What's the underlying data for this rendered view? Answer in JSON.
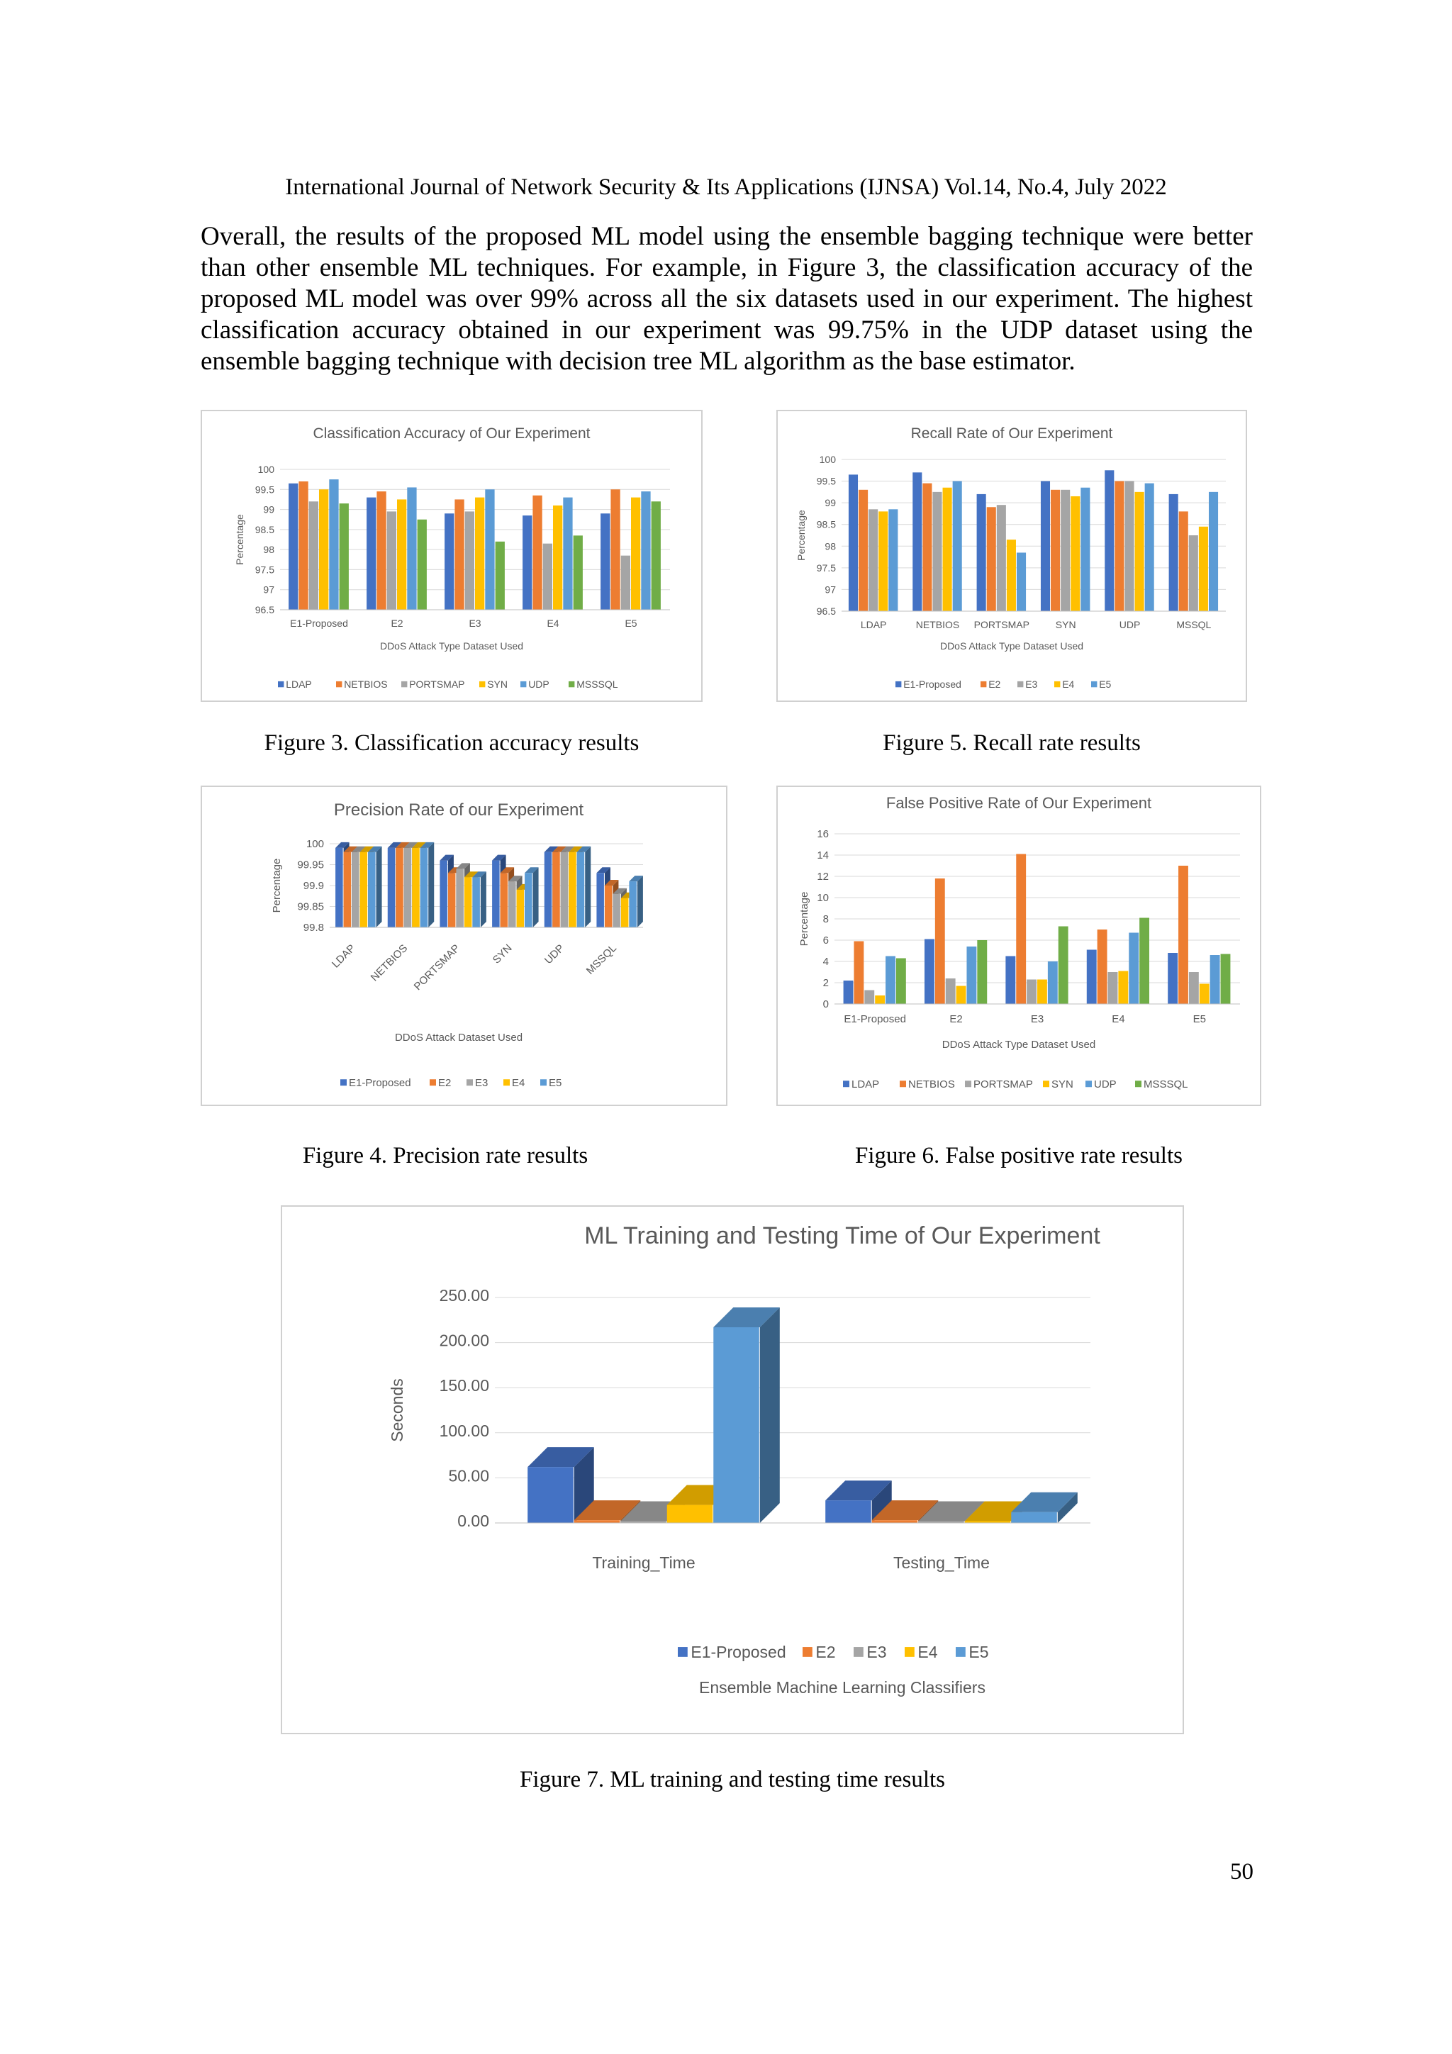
{
  "header": "International Journal of Network Security & Its Applications (IJNSA) Vol.14, No.4, July 2022",
  "paragraph": "Overall, the results of the proposed ML model using the ensemble bagging technique were better than other ensemble ML techniques. For example, in Figure 3, the classification accuracy of the proposed ML model was over 99% across all the six datasets used in our experiment. The highest classification accuracy obtained in our experiment was 99.75% in the UDP dataset using the ensemble bagging technique with decision tree ML algorithm as the base estimator.",
  "captions": {
    "fig3": "Figure 3. Classification accuracy results",
    "fig5": "Figure 5. Recall rate results",
    "fig4": "Figure 4. Precision rate results",
    "fig6": "Figure 6. False positive rate results",
    "fig7": "Figure 7. ML training and testing time results"
  },
  "page_number": "50",
  "colors": {
    "blue": "#4472c4",
    "orange": "#ed7d31",
    "gray": "#a5a5a5",
    "yellow": "#ffc000",
    "lightblue": "#5b9bd5",
    "green": "#70ad47"
  },
  "chart_data": [
    {
      "id": "fig3",
      "type": "bar",
      "title": "Classification Accuracy of Our Experiment",
      "xlabel": "DDoS Attack Type Dataset Used",
      "ylabel": "Percentage",
      "ylim": [
        96.5,
        100
      ],
      "yticks": [
        "100",
        "99.5",
        "99",
        "98.5",
        "98",
        "97.5",
        "97",
        "96.5"
      ],
      "categories": [
        "E1-Proposed",
        "E2",
        "E3",
        "E4",
        "E5"
      ],
      "legend_position": "bottom",
      "series": [
        {
          "name": "LDAP",
          "color": "#4472c4",
          "values": [
            99.65,
            99.3,
            98.9,
            98.85,
            98.9
          ]
        },
        {
          "name": "NETBIOS",
          "color": "#ed7d31",
          "values": [
            99.7,
            99.45,
            99.25,
            99.35,
            99.5
          ]
        },
        {
          "name": "PORTSMAP",
          "color": "#a5a5a5",
          "values": [
            99.2,
            98.95,
            98.95,
            98.15,
            97.85
          ]
        },
        {
          "name": "SYN",
          "color": "#ffc000",
          "values": [
            99.5,
            99.25,
            99.3,
            99.1,
            99.3
          ]
        },
        {
          "name": "UDP",
          "color": "#5b9bd5",
          "values": [
            99.75,
            99.55,
            99.5,
            99.3,
            99.45
          ]
        },
        {
          "name": "MSSSQL",
          "color": "#70ad47",
          "values": [
            99.15,
            98.75,
            98.2,
            98.35,
            99.2
          ]
        }
      ]
    },
    {
      "id": "fig5",
      "type": "bar",
      "title": "Recall Rate of Our Experiment",
      "xlabel": "DDoS Attack Type Dataset Used",
      "ylabel": "Percentage",
      "ylim": [
        96.5,
        100
      ],
      "yticks": [
        "100",
        "99.5",
        "99",
        "98.5",
        "98",
        "97.5",
        "97",
        "96.5"
      ],
      "categories": [
        "LDAP",
        "NETBIOS",
        "PORTSMAP",
        "SYN",
        "UDP",
        "MSSQL"
      ],
      "legend_position": "bottom",
      "series": [
        {
          "name": "E1-Proposed",
          "color": "#4472c4",
          "values": [
            99.65,
            99.7,
            99.2,
            99.5,
            99.75,
            99.2
          ]
        },
        {
          "name": "E2",
          "color": "#ed7d31",
          "values": [
            99.3,
            99.45,
            98.9,
            99.3,
            99.5,
            98.8
          ]
        },
        {
          "name": "E3",
          "color": "#a5a5a5",
          "values": [
            98.85,
            99.25,
            98.95,
            99.3,
            99.5,
            98.25
          ]
        },
        {
          "name": "E4",
          "color": "#ffc000",
          "values": [
            98.8,
            99.35,
            98.15,
            99.15,
            99.25,
            98.45
          ]
        },
        {
          "name": "E5",
          "color": "#5b9bd5",
          "values": [
            98.85,
            99.5,
            97.85,
            99.35,
            99.45,
            99.25
          ]
        }
      ]
    },
    {
      "id": "fig4",
      "type": "bar",
      "title": "Precision Rate of our Experiment",
      "xlabel": "DDoS Attack Dataset Used",
      "ylabel": "Percentage",
      "ylim": [
        99.8,
        100
      ],
      "yticks": [
        "100",
        "99.95",
        "99.9",
        "99.85",
        "99.8"
      ],
      "categories": [
        "LDAP",
        "NETBIOS",
        "PORTSMAP",
        "SYN",
        "UDP",
        "MSSQL"
      ],
      "legend_position": "bottom",
      "series": [
        {
          "name": "E1-Proposed",
          "color": "#4472c4",
          "values": [
            99.99,
            99.99,
            99.96,
            99.96,
            99.98,
            99.93
          ]
        },
        {
          "name": "E2",
          "color": "#ed7d31",
          "values": [
            99.98,
            99.99,
            99.93,
            99.93,
            99.98,
            99.9
          ]
        },
        {
          "name": "E3",
          "color": "#a5a5a5",
          "values": [
            99.98,
            99.99,
            99.94,
            99.91,
            99.98,
            99.88
          ]
        },
        {
          "name": "E4",
          "color": "#ffc000",
          "values": [
            99.98,
            99.99,
            99.92,
            99.89,
            99.98,
            99.87
          ]
        },
        {
          "name": "E5",
          "color": "#5b9bd5",
          "values": [
            99.98,
            99.99,
            99.92,
            99.93,
            99.98,
            99.91
          ]
        }
      ]
    },
    {
      "id": "fig6",
      "type": "bar",
      "title": "False Positive Rate of Our Experiment",
      "xlabel": "DDoS Attack Type  Dataset Used",
      "ylabel": "Percentage",
      "ylim": [
        0,
        16
      ],
      "yticks": [
        "16",
        "14",
        "12",
        "10",
        "8",
        "6",
        "4",
        "2",
        "0"
      ],
      "categories": [
        "E1-Proposed",
        "E2",
        "E3",
        "E4",
        "E5"
      ],
      "legend_position": "bottom",
      "series": [
        {
          "name": "LDAP",
          "color": "#4472c4",
          "values": [
            2.2,
            6.1,
            4.5,
            5.1,
            4.8
          ]
        },
        {
          "name": "NETBIOS",
          "color": "#ed7d31",
          "values": [
            5.9,
            11.8,
            14.1,
            7.0,
            13.0
          ]
        },
        {
          "name": "PORTSMAP",
          "color": "#a5a5a5",
          "values": [
            1.3,
            2.4,
            2.3,
            3.0,
            3.0
          ]
        },
        {
          "name": "SYN",
          "color": "#ffc000",
          "values": [
            0.8,
            1.7,
            2.3,
            3.1,
            1.9
          ]
        },
        {
          "name": "UDP",
          "color": "#5b9bd5",
          "values": [
            4.5,
            5.4,
            4.0,
            6.7,
            4.6
          ]
        },
        {
          "name": "MSSSQL",
          "color": "#70ad47",
          "values": [
            4.3,
            6.0,
            7.3,
            8.1,
            4.7
          ]
        }
      ]
    },
    {
      "id": "fig7",
      "type": "bar",
      "title": "ML Training and Testing Time of Our Experiment",
      "xlabel": "Ensemble Machine Learning Classifiers",
      "ylabel": "Seconds",
      "ylim": [
        0,
        250
      ],
      "yticks": [
        "250.00",
        "200.00",
        "150.00",
        "100.00",
        "50.00",
        "0.00"
      ],
      "categories": [
        "Training_Time",
        "Testing_Time"
      ],
      "legend_position": "bottom",
      "series": [
        {
          "name": "E1-Proposed",
          "color": "#4472c4",
          "values": [
            62,
            25
          ]
        },
        {
          "name": "E2",
          "color": "#ed7d31",
          "values": [
            3,
            3
          ]
        },
        {
          "name": "E3",
          "color": "#a5a5a5",
          "values": [
            2,
            2
          ]
        },
        {
          "name": "E4",
          "color": "#ffc000",
          "values": [
            20,
            2
          ]
        },
        {
          "name": "E5",
          "color": "#5b9bd5",
          "values": [
            217,
            12
          ]
        }
      ]
    }
  ]
}
